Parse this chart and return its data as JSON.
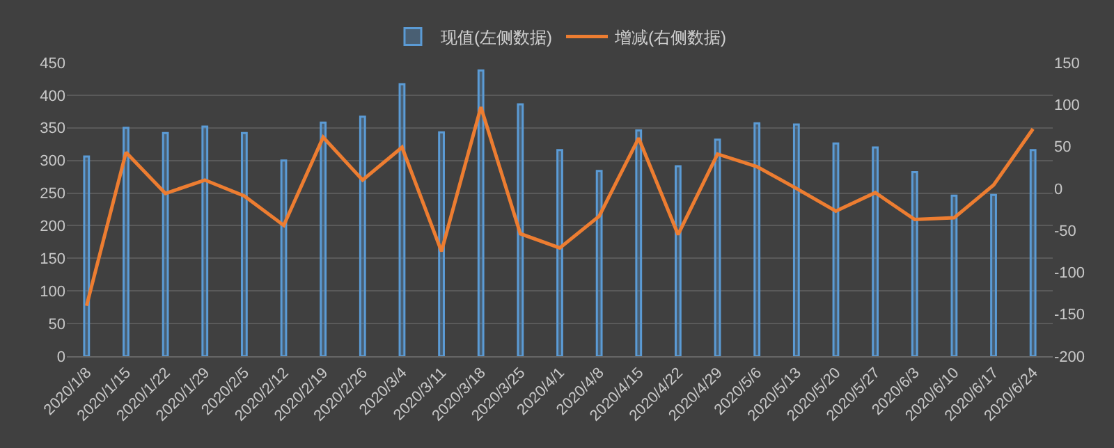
{
  "chart_data": {
    "type": "bar",
    "categories": [
      "2020/1/8",
      "2020/1/15",
      "2020/1/22",
      "2020/1/29",
      "2020/2/5",
      "2020/2/12",
      "2020/2/19",
      "2020/2/26",
      "2020/3/4",
      "2020/3/11",
      "2020/3/18",
      "2020/3/25",
      "2020/4/1",
      "2020/4/8",
      "2020/4/15",
      "2020/4/22",
      "2020/4/29",
      "2020/5/6",
      "2020/5/13",
      "2020/5/20",
      "2020/5/27",
      "2020/6/3",
      "2020/6/10",
      "2020/6/17",
      "2020/6/24"
    ],
    "series": [
      {
        "name": "现值(左侧数据)",
        "color": "#5b9bd5",
        "values": [
          306,
          350,
          342,
          352,
          342,
          300,
          358,
          367,
          417,
          343,
          438,
          386,
          316,
          284,
          346,
          291,
          332,
          357,
          355,
          326,
          320,
          282,
          246,
          247,
          316
        ]
      },
      {
        "name": "增减(右侧数据)",
        "type": "line",
        "axis": "y2",
        "color": "#ed7d31",
        "values": [
          -140,
          43,
          -6,
          10,
          -9,
          -44,
          61,
          10,
          49,
          -75,
          97,
          -54,
          -71,
          -33,
          60,
          -55,
          41,
          26,
          0,
          -27,
          -5,
          -37,
          -35,
          4,
          71
        ]
      }
    ],
    "ylim": [
      0,
      450
    ],
    "yticks": [
      0,
      50,
      100,
      150,
      200,
      250,
      300,
      350,
      400,
      450
    ],
    "y2lim": [
      -200,
      150
    ],
    "y2ticks": [
      -200,
      -150,
      -100,
      -50,
      0,
      50,
      100,
      150
    ],
    "grid": "y",
    "legend": "top",
    "marker": "none",
    "line_style": "solid"
  }
}
